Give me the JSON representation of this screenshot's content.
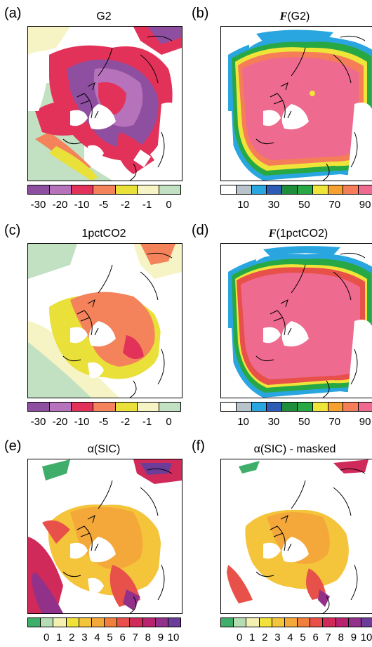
{
  "panels": [
    {
      "id": "a",
      "label": "(a)",
      "title": "G2",
      "title_func": "",
      "ticks": [
        "-30",
        "-20",
        "-10",
        "-5",
        "-2",
        "-1",
        "0"
      ],
      "colorbar": [
        "#8e4fa0",
        "#b673bb",
        "#e3325a",
        "#f4825a",
        "#e9e03a",
        "#f6f3c4",
        "#c2e0c2"
      ]
    },
    {
      "id": "b",
      "label": "(b)",
      "title": "(G2)",
      "title_func": "F",
      "ticks": [
        "10",
        "30",
        "50",
        "70",
        "90"
      ],
      "colorbar": [
        "#ffffff",
        "#b9c3cc",
        "#29a6df",
        "#2d5bb5",
        "#1f8e3c",
        "#27a844",
        "#efe43a",
        "#f5a030",
        "#f57e58",
        "#ee6a8f"
      ]
    },
    {
      "id": "c",
      "label": "(c)",
      "title": "1pctCO2",
      "title_func": "",
      "ticks": [
        "-30",
        "-20",
        "-10",
        "-5",
        "-2",
        "-1",
        "0"
      ],
      "colorbar": [
        "#8e4fa0",
        "#b673bb",
        "#e3325a",
        "#f4825a",
        "#e9e03a",
        "#f6f3c4",
        "#c2e0c2"
      ]
    },
    {
      "id": "d",
      "label": "(d)",
      "title": "(1pctCO2)",
      "title_func": "F",
      "ticks": [
        "10",
        "30",
        "50",
        "70",
        "90"
      ],
      "colorbar": [
        "#ffffff",
        "#b9c3cc",
        "#29a6df",
        "#2d5bb5",
        "#1f8e3c",
        "#27a844",
        "#efe43a",
        "#f5a030",
        "#f57e58",
        "#ee6a8f"
      ]
    },
    {
      "id": "e",
      "label": "(e)",
      "title": "α(SIC)",
      "title_func": "",
      "ticks": [
        "0",
        "1",
        "2",
        "3",
        "4",
        "5",
        "6",
        "7",
        "8",
        "9",
        "10"
      ],
      "colorbar": [
        "#3fae6a",
        "#b5dcb2",
        "#f4f0b2",
        "#f0e23a",
        "#f4c43a",
        "#f4a83a",
        "#ef7f3a",
        "#e8504a",
        "#d02a5a",
        "#b7236e",
        "#92318a",
        "#6b3d99"
      ]
    },
    {
      "id": "f",
      "label": "(f)",
      "title": "α(SIC) - masked",
      "title_func": "",
      "ticks": [
        "0",
        "1",
        "2",
        "3",
        "4",
        "5",
        "6",
        "7",
        "8",
        "9",
        "10"
      ],
      "colorbar": [
        "#3fae6a",
        "#b5dcb2",
        "#f4f0b2",
        "#f0e23a",
        "#f4c43a",
        "#f4a83a",
        "#ef7f3a",
        "#e8504a",
        "#d02a5a",
        "#b7236e",
        "#92318a",
        "#6b3d99"
      ]
    }
  ]
}
